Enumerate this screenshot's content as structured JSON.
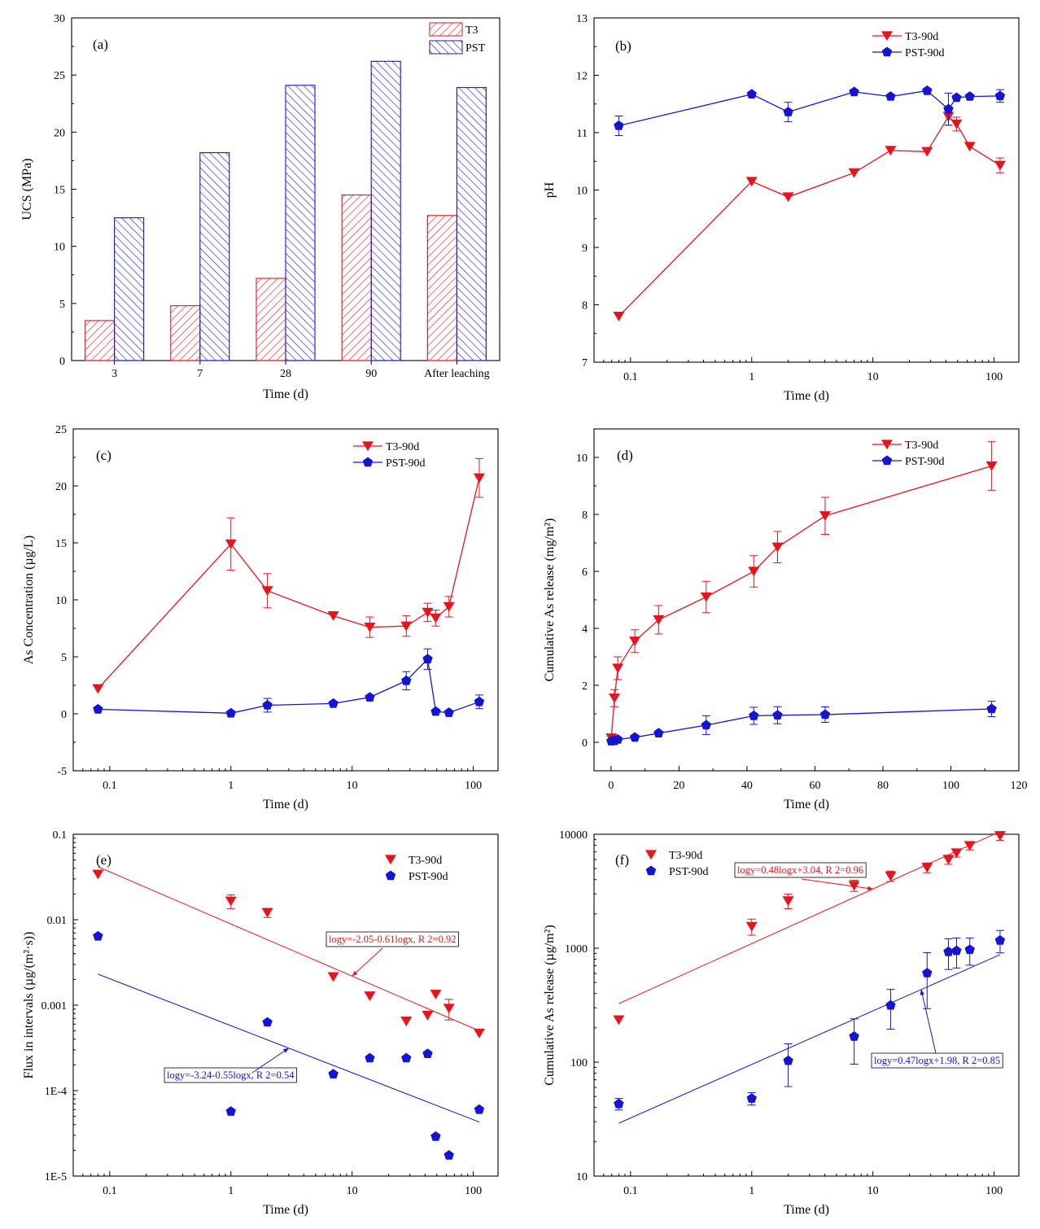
{
  "colors": {
    "t3": "#e8141b",
    "pst": "#1414d2",
    "t3_fill": "#e8141b",
    "pst_fill": "#1414d2"
  },
  "chart_data": [
    {
      "id": "a",
      "panel": "(a)",
      "type": "bar",
      "categories": [
        "3",
        "7",
        "28",
        "90",
        "After leaching"
      ],
      "series": [
        {
          "name": "T3",
          "values": [
            3.5,
            4.8,
            7.2,
            14.5,
            12.7
          ]
        },
        {
          "name": "PST",
          "values": [
            12.5,
            18.2,
            24.1,
            26.2,
            23.9
          ]
        }
      ],
      "xlabel": "Time (d)",
      "ylabel": "UCS (MPa)",
      "ylim": [
        0,
        30
      ],
      "yticks": [
        "0",
        "5",
        "10",
        "15",
        "20",
        "25",
        "30"
      ],
      "legend": "top-right"
    },
    {
      "id": "b",
      "panel": "(b)",
      "type": "line",
      "xscale": "log",
      "series": [
        {
          "name": "T3-90d",
          "x": [
            0.08,
            1,
            2,
            7,
            14,
            28,
            42,
            49,
            63,
            112
          ],
          "y": [
            7.8,
            10.15,
            9.88,
            10.3,
            10.69,
            10.67,
            11.28,
            11.15,
            10.76,
            10.43
          ],
          "err": [
            0,
            0,
            0,
            0,
            0,
            0,
            0.15,
            0.12,
            0,
            0.13
          ]
        },
        {
          "name": "PST-90d",
          "x": [
            0.08,
            1,
            2,
            7,
            14,
            28,
            42,
            49,
            63,
            112
          ],
          "y": [
            11.12,
            11.67,
            11.36,
            11.71,
            11.63,
            11.73,
            11.41,
            11.61,
            11.63,
            11.64
          ],
          "err": [
            0.17,
            0,
            0.17,
            0,
            0,
            0,
            0.28,
            0,
            0,
            0.11
          ]
        }
      ],
      "xlabel": "Time (d)",
      "ylabel": "pH",
      "xlim": [
        0.05,
        160
      ],
      "ylim": [
        7,
        13
      ],
      "xticks": [
        "0.1",
        "1",
        "10",
        "100"
      ],
      "yticks": [
        "7",
        "8",
        "9",
        "10",
        "11",
        "12",
        "13"
      ],
      "legend": "top-right"
    },
    {
      "id": "c",
      "panel": "(c)",
      "type": "line",
      "xscale": "log",
      "series": [
        {
          "name": "T3-90d",
          "x": [
            0.08,
            1,
            2,
            7,
            14,
            28,
            42,
            49,
            63,
            112
          ],
          "y": [
            2.2,
            14.9,
            10.8,
            8.6,
            7.6,
            7.7,
            8.9,
            8.4,
            9.4,
            20.7
          ],
          "err": [
            0,
            2.3,
            1.5,
            0,
            0.9,
            0.9,
            0.8,
            0.7,
            0.9,
            1.7
          ]
        },
        {
          "name": "PST-90d",
          "x": [
            0.08,
            1,
            2,
            7,
            14,
            28,
            42,
            49,
            63,
            112
          ],
          "y": [
            0.4,
            0.05,
            0.75,
            0.9,
            1.45,
            2.9,
            4.8,
            0.2,
            0.1,
            1.05
          ],
          "err": [
            0,
            0,
            0.6,
            0,
            0,
            0.8,
            0.9,
            0,
            0,
            0.6
          ]
        }
      ],
      "xlabel": "Time (d)",
      "ylabel": "As Concentration (µg/L)",
      "xlim": [
        0.05,
        160
      ],
      "ylim": [
        -5,
        25
      ],
      "xticks": [
        "0.1",
        "1",
        "10",
        "100"
      ],
      "yticks": [
        "-5",
        "0",
        "5",
        "10",
        "15",
        "20",
        "25"
      ],
      "legend": "top-right"
    },
    {
      "id": "d",
      "panel": "(d)",
      "type": "line",
      "xscale": "linear",
      "series": [
        {
          "name": "T3-90d",
          "x": [
            0.08,
            1,
            2,
            7,
            14,
            28,
            42,
            49,
            63,
            112
          ],
          "y": [
            0.15,
            1.55,
            2.6,
            3.55,
            4.3,
            5.1,
            6.0,
            6.85,
            7.95,
            9.7
          ],
          "err": [
            0,
            0.3,
            0.4,
            0.4,
            0.5,
            0.55,
            0.55,
            0.55,
            0.65,
            0.85
          ]
        },
        {
          "name": "PST-90d",
          "x": [
            0.08,
            1,
            2,
            7,
            14,
            28,
            42,
            49,
            63,
            112
          ],
          "y": [
            0.04,
            0.05,
            0.1,
            0.17,
            0.32,
            0.6,
            0.93,
            0.95,
            0.97,
            1.17
          ],
          "err": [
            0,
            0,
            0,
            0,
            0,
            0.33,
            0.3,
            0.3,
            0.27,
            0.27
          ]
        }
      ],
      "xlabel": "Time (d)",
      "ylabel": "Cumulative As release (mg/m²)",
      "xlim": [
        -5,
        120
      ],
      "ylim": [
        -1,
        11
      ],
      "xticks": [
        "0",
        "20",
        "40",
        "60",
        "80",
        "100",
        "120"
      ],
      "yticks": [
        "0",
        "2",
        "4",
        "6",
        "8",
        "10"
      ],
      "legend": "top-right"
    },
    {
      "id": "e",
      "panel": "(e)",
      "type": "scatter",
      "xscale": "log",
      "yscale": "log",
      "series": [
        {
          "name": "T3-90d",
          "x": [
            0.08,
            1,
            2,
            7,
            14,
            28,
            42,
            49,
            63,
            112
          ],
          "y": [
            0.034,
            0.0165,
            0.0121,
            0.00215,
            0.00128,
            0.00065,
            0.00076,
            0.00134,
            0.00092,
            0.00047
          ],
          "err": [
            0,
            0.003,
            0.0015,
            0,
            0,
            0,
            0,
            0,
            0.00025,
            0
          ]
        },
        {
          "name": "PST-90d",
          "x": [
            0.08,
            1,
            2,
            7,
            14,
            28,
            42,
            49,
            63,
            112
          ],
          "y": [
            0.0064,
            5.7e-05,
            0.00063,
            0.000156,
            0.00024,
            0.00024,
            0.00027,
            2.9e-05,
            1.75e-05,
            6e-05
          ],
          "err": [
            0,
            0,
            0,
            0,
            0,
            0,
            0,
            0,
            0,
            0
          ]
        }
      ],
      "fits": [
        {
          "series": "T3-90d",
          "intercept": -2.05,
          "slope": -0.61,
          "label": "logy=-2.05-0.61logx, R 2=0.92"
        },
        {
          "series": "PST-90d",
          "intercept": -3.24,
          "slope": -0.55,
          "label": "logy=-3.24-0.55logx, R 2=0.54"
        }
      ],
      "xlabel": "Time (d)",
      "ylabel": "Flux in intervals (µg/(m²·s))",
      "xlim": [
        0.05,
        160
      ],
      "ylim": [
        1e-05,
        0.1
      ],
      "xticks": [
        "0.1",
        "1",
        "10",
        "100"
      ],
      "yticks": [
        "1E-5",
        "1E-4",
        "0.001",
        "0.01",
        "0.1"
      ],
      "legend": "top-right"
    },
    {
      "id": "f",
      "panel": "(f)",
      "type": "scatter",
      "xscale": "log",
      "yscale": "log",
      "series": [
        {
          "name": "T3-90d",
          "x": [
            0.08,
            1,
            2,
            7,
            14,
            28,
            42,
            49,
            63,
            112
          ],
          "y": [
            235,
            1550,
            2600,
            3550,
            4300,
            5100,
            6000,
            6850,
            7950,
            9700
          ],
          "err": [
            0,
            250,
            380,
            400,
            450,
            500,
            550,
            550,
            650,
            850
          ]
        },
        {
          "name": "PST-90d",
          "x": [
            0.08,
            1,
            2,
            7,
            14,
            28,
            42,
            49,
            63,
            112
          ],
          "y": [
            43,
            48,
            103,
            168,
            315,
            605,
            930,
            950,
            970,
            1170
          ],
          "err": [
            5,
            6,
            42,
            72,
            120,
            310,
            280,
            280,
            260,
            260
          ]
        }
      ],
      "fits": [
        {
          "series": "T3-90d",
          "intercept": 3.04,
          "slope": 0.48,
          "label": "logy=0.48logx+3.04, R 2=0.96"
        },
        {
          "series": "PST-90d",
          "intercept": 1.98,
          "slope": 0.47,
          "label": "logy=0.47logx+1.98, R 2=0.85"
        }
      ],
      "xlabel": "Time (d)",
      "ylabel": "Cumulative As release (µg/m²)",
      "xlim": [
        0.05,
        160
      ],
      "ylim": [
        10,
        10000
      ],
      "xticks": [
        "0.1",
        "1",
        "10",
        "100"
      ],
      "yticks": [
        "10",
        "100",
        "1000",
        "10000"
      ],
      "legend": "top-left"
    }
  ]
}
